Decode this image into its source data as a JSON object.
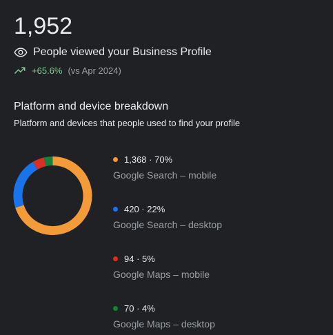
{
  "summary": {
    "total": "1,952",
    "views_label": "People viewed your Business Profile",
    "trend_pct": "+65.6%",
    "trend_compare": "(vs Apr 2024)"
  },
  "breakdown": {
    "title": "Platform and device breakdown",
    "subtitle": "Platform and devices that people used to find your profile",
    "items": [
      {
        "value": "1,368 · 70%",
        "label": "Google Search – mobile",
        "color": "#f29b38"
      },
      {
        "value": "420 · 22%",
        "label": "Google Search – desktop",
        "color": "#1a73e8"
      },
      {
        "value": "94 · 5%",
        "label": "Google Maps – mobile",
        "color": "#d93025"
      },
      {
        "value": "70 · 4%",
        "label": "Google Maps – desktop",
        "color": "#188038"
      }
    ]
  },
  "chart_data": {
    "type": "pie",
    "categories": [
      "Google Search – mobile",
      "Google Search – desktop",
      "Google Maps – mobile",
      "Google Maps – desktop"
    ],
    "values": [
      1368,
      420,
      94,
      70
    ],
    "colors": [
      "#f29b38",
      "#1a73e8",
      "#d93025",
      "#188038"
    ]
  },
  "icons": {
    "views": "eye-icon",
    "trend": "trending-up-icon"
  }
}
